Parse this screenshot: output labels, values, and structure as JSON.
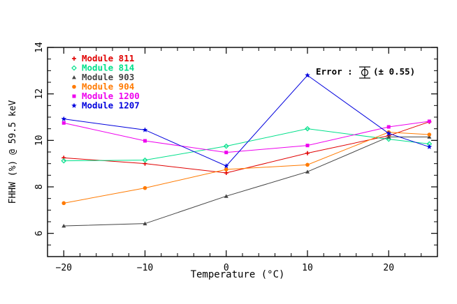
{
  "chart_data": {
    "type": "line",
    "title": "",
    "xlabel": "Temperature (°C)",
    "ylabel": "FHHW (%) @ 59.5 keV",
    "xlim": [
      -22,
      26
    ],
    "ylim": [
      5,
      14
    ],
    "xticks": [
      -20,
      -10,
      0,
      10,
      20
    ],
    "xtick_labels": [
      "−20",
      "−10",
      "0",
      "10",
      "20"
    ],
    "yticks": [
      6,
      8,
      10,
      12,
      14
    ],
    "ytick_labels": [
      "6",
      "8",
      "10",
      "12",
      "14"
    ],
    "x": [
      -20,
      -10,
      0,
      10,
      20,
      25
    ],
    "series": [
      {
        "name": "Module 811",
        "color": "#e00000",
        "marker": "plus",
        "values": [
          9.25,
          9.0,
          8.6,
          9.45,
          10.2,
          10.8
        ]
      },
      {
        "name": "Module 814",
        "color": "#00e08a",
        "marker": "diamond",
        "values": [
          9.12,
          9.15,
          9.75,
          10.5,
          10.05,
          9.85
        ]
      },
      {
        "name": "Module 903",
        "color": "#444444",
        "marker": "triangle",
        "values": [
          6.32,
          6.42,
          7.6,
          8.65,
          10.15,
          10.15
        ]
      },
      {
        "name": "Module 904",
        "color": "#ff7a00",
        "marker": "circle",
        "values": [
          7.3,
          7.95,
          8.75,
          8.95,
          10.35,
          10.25
        ]
      },
      {
        "name": "Module 1200",
        "color": "#ee00ee",
        "marker": "square",
        "values": [
          10.75,
          9.98,
          9.48,
          9.78,
          10.58,
          10.82
        ]
      },
      {
        "name": "Module 1207",
        "color": "#0000dd",
        "marker": "star",
        "values": [
          10.92,
          10.45,
          8.9,
          12.8,
          10.3,
          9.72
        ]
      }
    ],
    "legend_position": "top-left",
    "error_note": {
      "prefix": "Error :",
      "value": "(± 0.55)"
    }
  }
}
